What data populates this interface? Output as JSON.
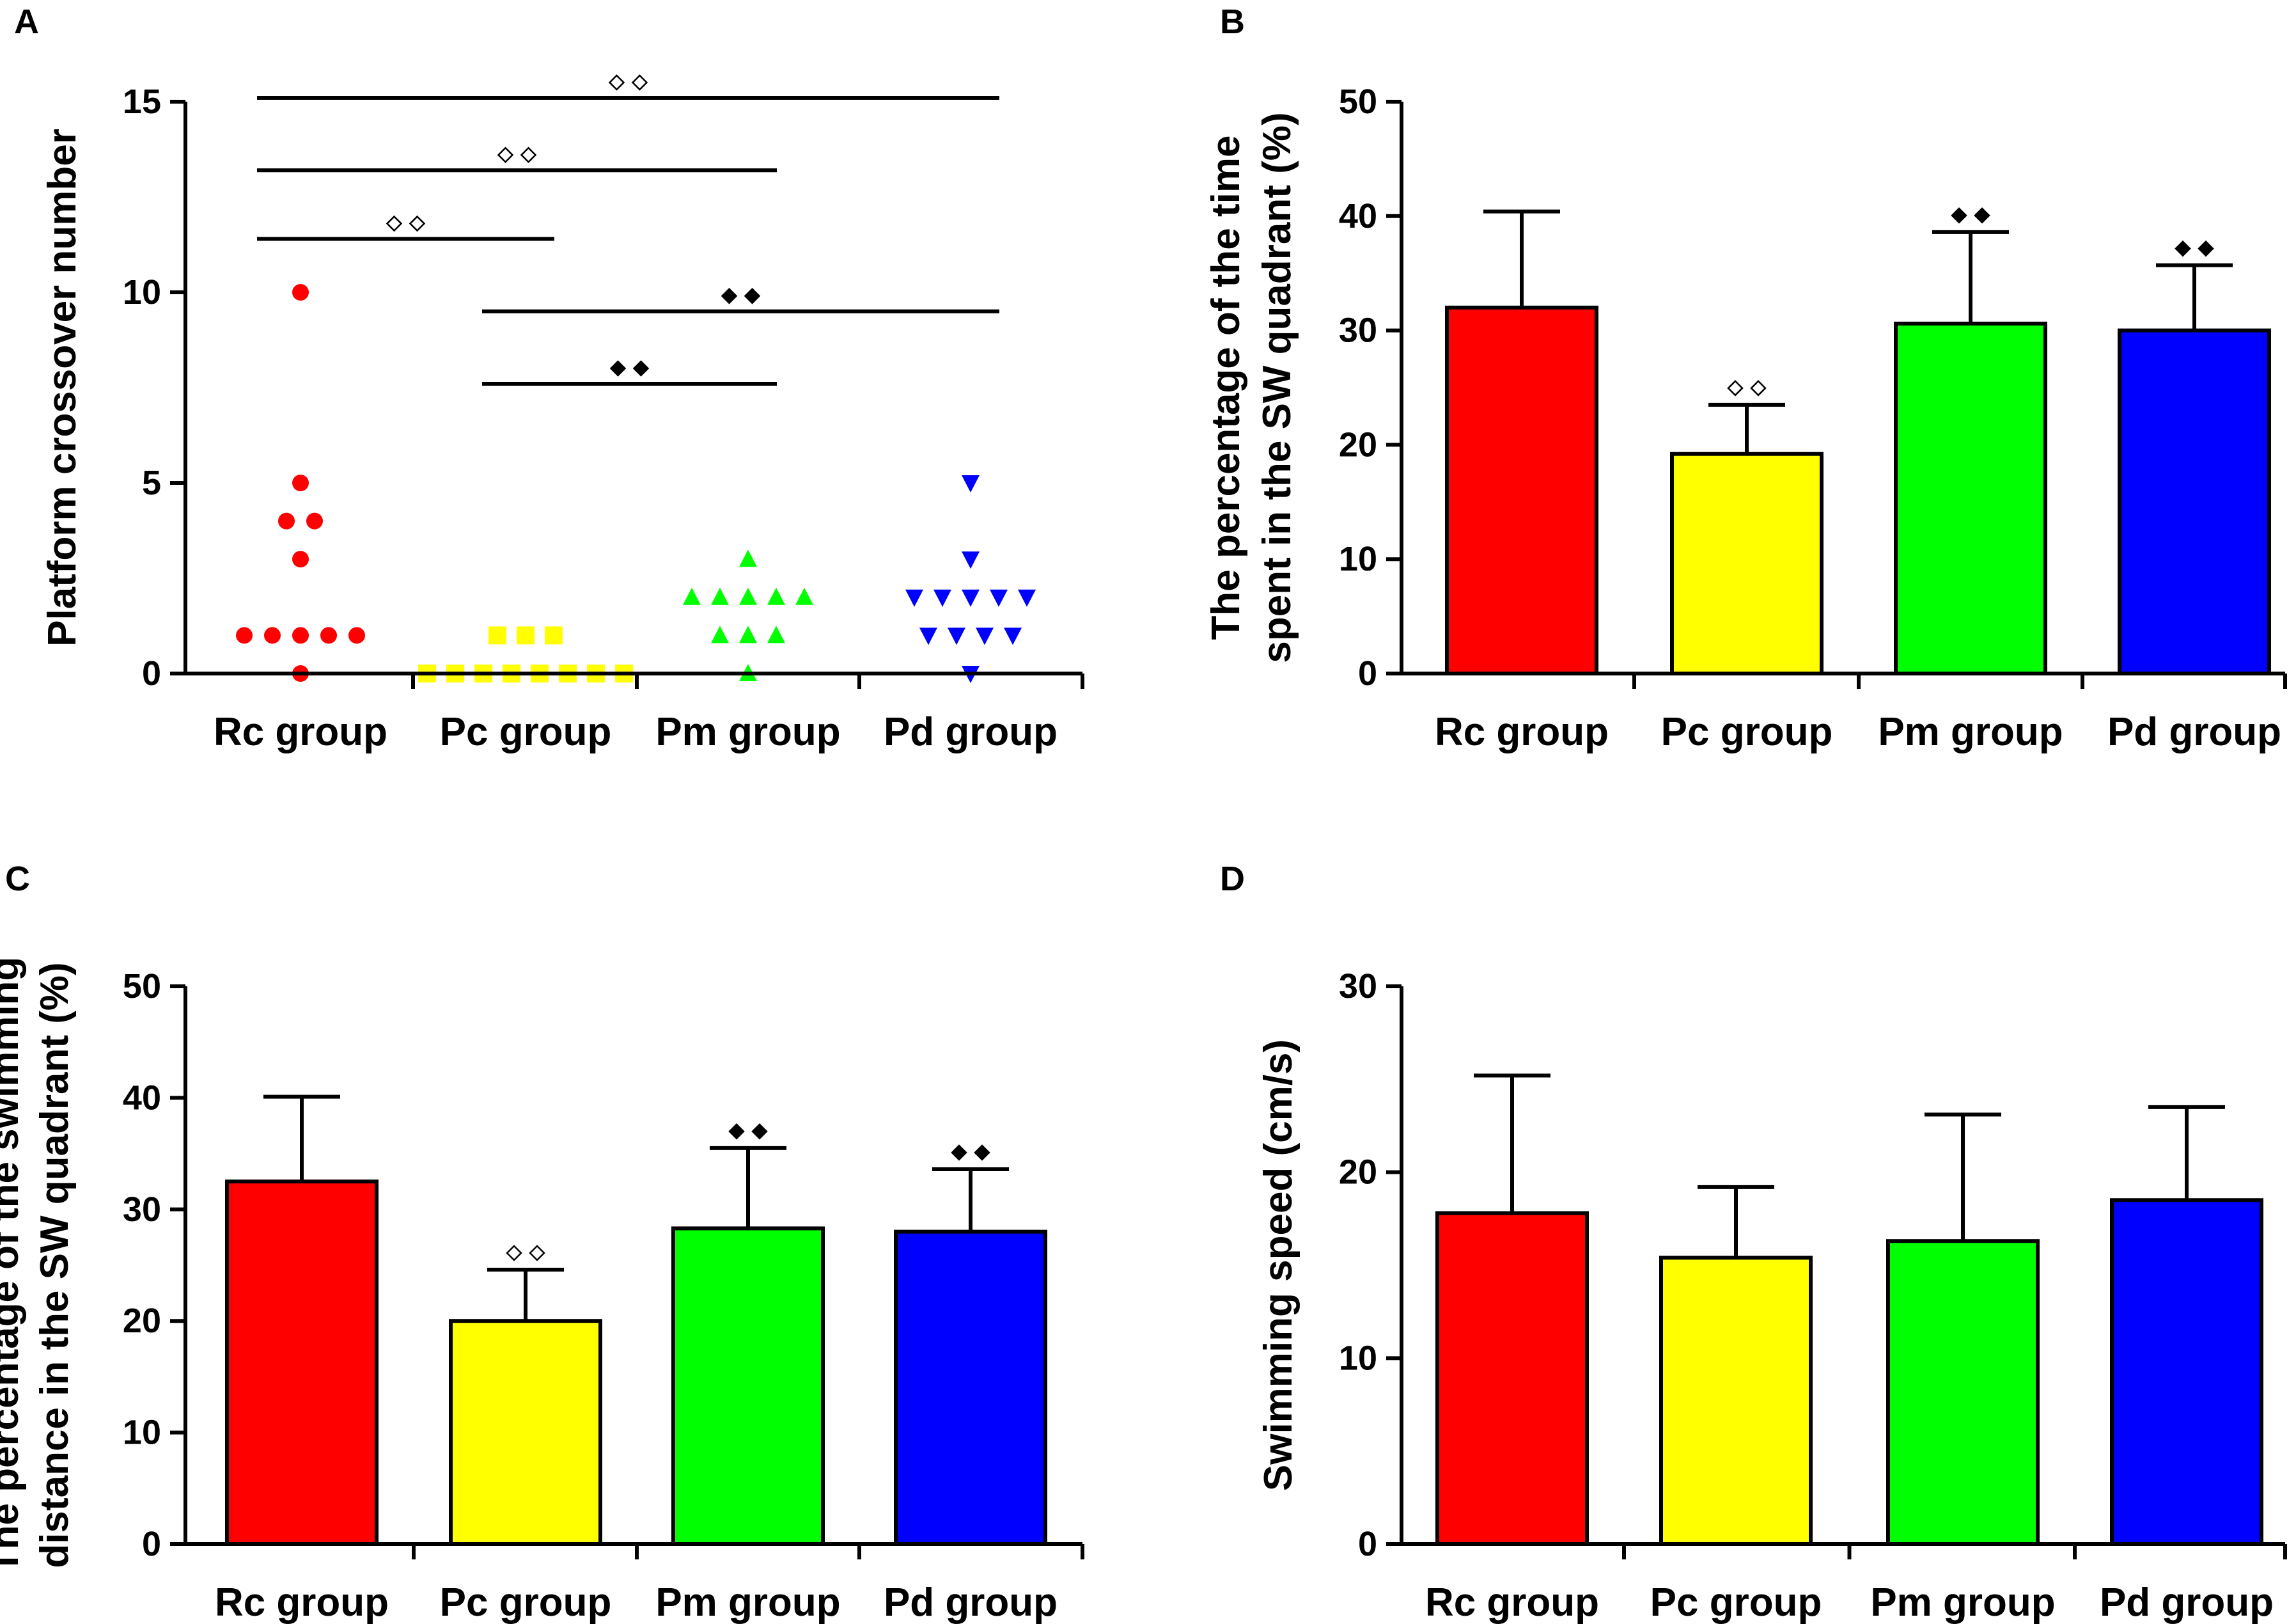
{
  "colors": {
    "Rc group": "#ff0000",
    "Pc group": "#ffff00",
    "Pm group": "#00ff00",
    "Pd group": "#0000ff"
  },
  "symbols": {
    "open": "◇◇",
    "filled": "◆◆"
  },
  "chart_data": [
    {
      "panel": "A",
      "type": "scatter",
      "ylabel": "Platform crossover number",
      "categories": [
        "Rc group",
        "Pc group",
        "Pm group",
        "Pd group"
      ],
      "ylim": [
        0,
        15
      ],
      "yticks": [
        0,
        5,
        10,
        15
      ],
      "points": [
        [
          10,
          5,
          4,
          4,
          3,
          1,
          1,
          1,
          1,
          1,
          0
        ],
        [
          1,
          1,
          1,
          0,
          0,
          0,
          0,
          0,
          0,
          0,
          0
        ],
        [
          3,
          2,
          2,
          2,
          2,
          2,
          1,
          1,
          1,
          0
        ],
        [
          5,
          3,
          2,
          2,
          2,
          2,
          2,
          1,
          1,
          1,
          1,
          0
        ]
      ],
      "comparisons": [
        {
          "from": 0,
          "to": 3,
          "y": 15.1,
          "symbol": "open"
        },
        {
          "from": 0,
          "to": 2,
          "y": 13.2,
          "symbol": "open"
        },
        {
          "from": 0,
          "to": 1,
          "y": 11.4,
          "symbol": "open"
        },
        {
          "from": 1,
          "to": 3,
          "y": 9.5,
          "symbol": "filled"
        },
        {
          "from": 1,
          "to": 2,
          "y": 7.6,
          "symbol": "filled"
        }
      ]
    },
    {
      "panel": "B",
      "type": "bar",
      "ylabel": [
        "The percentage of the time",
        "spent in the SW quadrant (%)"
      ],
      "categories": [
        "Rc group",
        "Pc group",
        "Pm group",
        "Pd group"
      ],
      "values": [
        32,
        19.2,
        30.6,
        30
      ],
      "errors": [
        8.4,
        4.3,
        8.0,
        5.7
      ],
      "annotations": [
        "",
        "open",
        "filled",
        "filled"
      ],
      "ylim": [
        0,
        50
      ],
      "yticks": [
        0,
        10,
        20,
        30,
        40,
        50
      ]
    },
    {
      "panel": "C",
      "type": "bar",
      "ylabel": [
        "The percentage of the swimming",
        "distance in the SW quadrant (%)"
      ],
      "categories": [
        "Rc group",
        "Pc group",
        "Pm group",
        "Pd group"
      ],
      "values": [
        32.5,
        20,
        28.3,
        28
      ],
      "errors": [
        7.6,
        4.6,
        7.2,
        5.6
      ],
      "annotations": [
        "",
        "open",
        "filled",
        "filled"
      ],
      "ylim": [
        0,
        50
      ],
      "yticks": [
        0,
        10,
        20,
        30,
        40,
        50
      ]
    },
    {
      "panel": "D",
      "type": "bar",
      "ylabel": [
        "Swimming speed (cm/s)"
      ],
      "categories": [
        "Rc group",
        "Pc group",
        "Pm group",
        "Pd group"
      ],
      "values": [
        17.8,
        15.4,
        16.3,
        18.5
      ],
      "errors": [
        7.4,
        3.8,
        6.8,
        5.0
      ],
      "annotations": [
        "",
        "",
        "",
        ""
      ],
      "ylim": [
        0,
        30
      ],
      "yticks": [
        0,
        10,
        20,
        30
      ]
    }
  ]
}
